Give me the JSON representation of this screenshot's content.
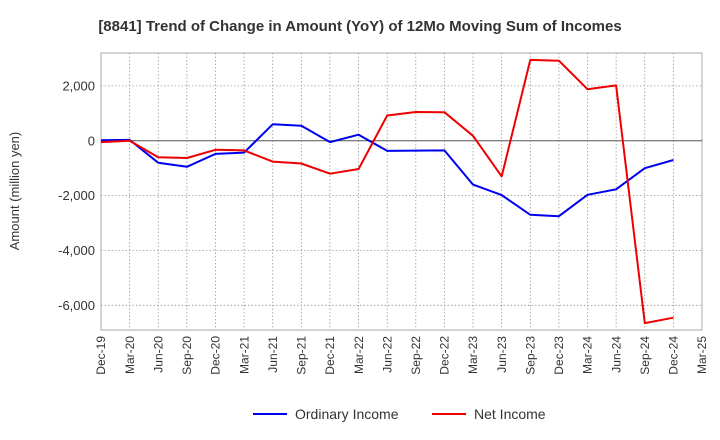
{
  "chart_data": {
    "type": "line",
    "title": "[8841]  Trend of Change in Amount (YoY) of 12Mo Moving Sum of Incomes",
    "xlabel": "",
    "ylabel": "Amount (million yen)",
    "ylim": [
      -6900,
      3200
    ],
    "y_ticks": [
      2000,
      0,
      -2000,
      -4000,
      -6000
    ],
    "y_tick_labels": [
      "2,000",
      "0",
      "-2,000",
      "-4,000",
      "-6,000"
    ],
    "categories": [
      "Dec-19",
      "Mar-20",
      "Jun-20",
      "Sep-20",
      "Dec-20",
      "Mar-21",
      "Jun-21",
      "Sep-21",
      "Dec-21",
      "Mar-22",
      "Jun-22",
      "Sep-22",
      "Dec-22",
      "Mar-23",
      "Jun-23",
      "Sep-23",
      "Dec-23",
      "Mar-24",
      "Jun-24",
      "Sep-24",
      "Dec-24",
      "Mar-25"
    ],
    "grid": true,
    "legend_position": "bottom",
    "series": [
      {
        "name": "Ordinary Income",
        "color": "#0000ee",
        "values": [
          20,
          30,
          -800,
          -950,
          -480,
          -430,
          600,
          550,
          -50,
          220,
          -370,
          -360,
          -350,
          -1600,
          -1980,
          -2700,
          -2750,
          -1970,
          -1770,
          -1000,
          -700,
          null
        ]
      },
      {
        "name": "Net Income",
        "color": "#ee0000",
        "values": [
          -50,
          0,
          -600,
          -630,
          -330,
          -350,
          -760,
          -830,
          -1200,
          -1030,
          920,
          1050,
          1040,
          180,
          -1300,
          2950,
          2920,
          1880,
          2020,
          -6650,
          -6450,
          null
        ]
      }
    ]
  }
}
